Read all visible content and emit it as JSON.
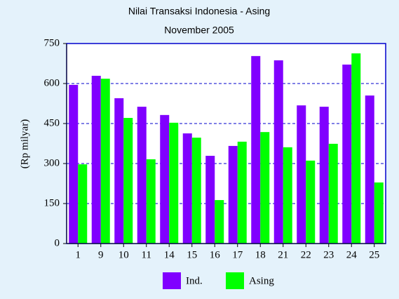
{
  "chart_data": {
    "type": "bar",
    "title": "Nilai Transaksi Indonesia - Asing",
    "subtitle": "November 2005",
    "y_label": "(Rp milyar)",
    "categories": [
      "1",
      "9",
      "10",
      "11",
      "14",
      "15",
      "16",
      "17",
      "18",
      "21",
      "22",
      "23",
      "24",
      "25"
    ],
    "series": [
      {
        "name": "Ind.",
        "color": "#8000ff",
        "values": [
          595,
          629,
          545,
          513,
          482,
          413,
          329,
          366,
          703,
          687,
          518,
          513,
          671,
          555
        ]
      },
      {
        "name": "Asing",
        "color": "#00ff00",
        "values": [
          297,
          618,
          471,
          316,
          453,
          397,
          163,
          382,
          418,
          361,
          311,
          374,
          713,
          229
        ]
      }
    ],
    "ylim": [
      0,
      750
    ],
    "yticks": [
      0,
      150,
      300,
      450,
      600,
      750
    ],
    "grid": true,
    "legend": "bottom"
  }
}
